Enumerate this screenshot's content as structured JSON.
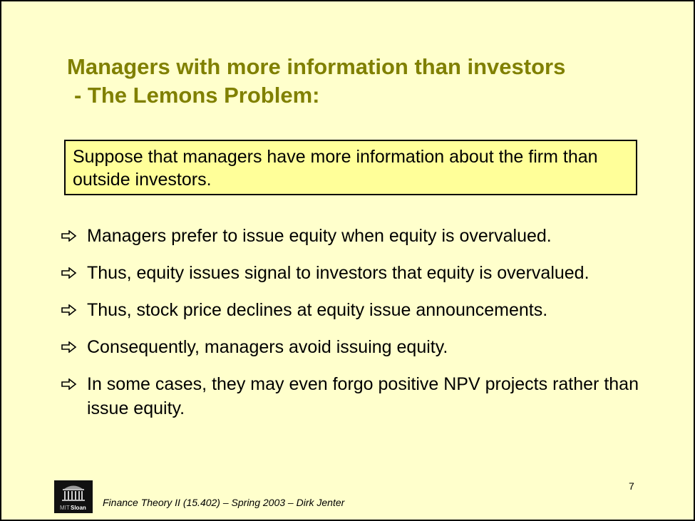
{
  "slide": {
    "title_line1": "Managers with more information than investors",
    "title_line2": "- The Lemons Problem:",
    "callout": "Suppose that managers have more information about the firm than outside investors.",
    "bullets": [
      "Managers prefer to issue equity when equity is overvalued.",
      "Thus, equity issues signal to investors that equity is overvalued.",
      "Thus, stock price declines at equity issue announcements.",
      "Consequently, managers avoid issuing equity.",
      "In some cases, they may even forgo positive NPV projects rather than issue equity."
    ],
    "bullet_icon": "right-arrow-icon",
    "page_number": "7",
    "footer": "Finance Theory II (15.402) – Spring 2003 – Dirk Jenter",
    "logo": {
      "icon": "mit-sloan-logo-icon",
      "text_mit": "MIT",
      "text_sloan": "Sloan"
    }
  },
  "colors": {
    "background": "#ffffcc",
    "title": "#808000",
    "callout_fill": "#ffff99",
    "text": "#000000"
  }
}
